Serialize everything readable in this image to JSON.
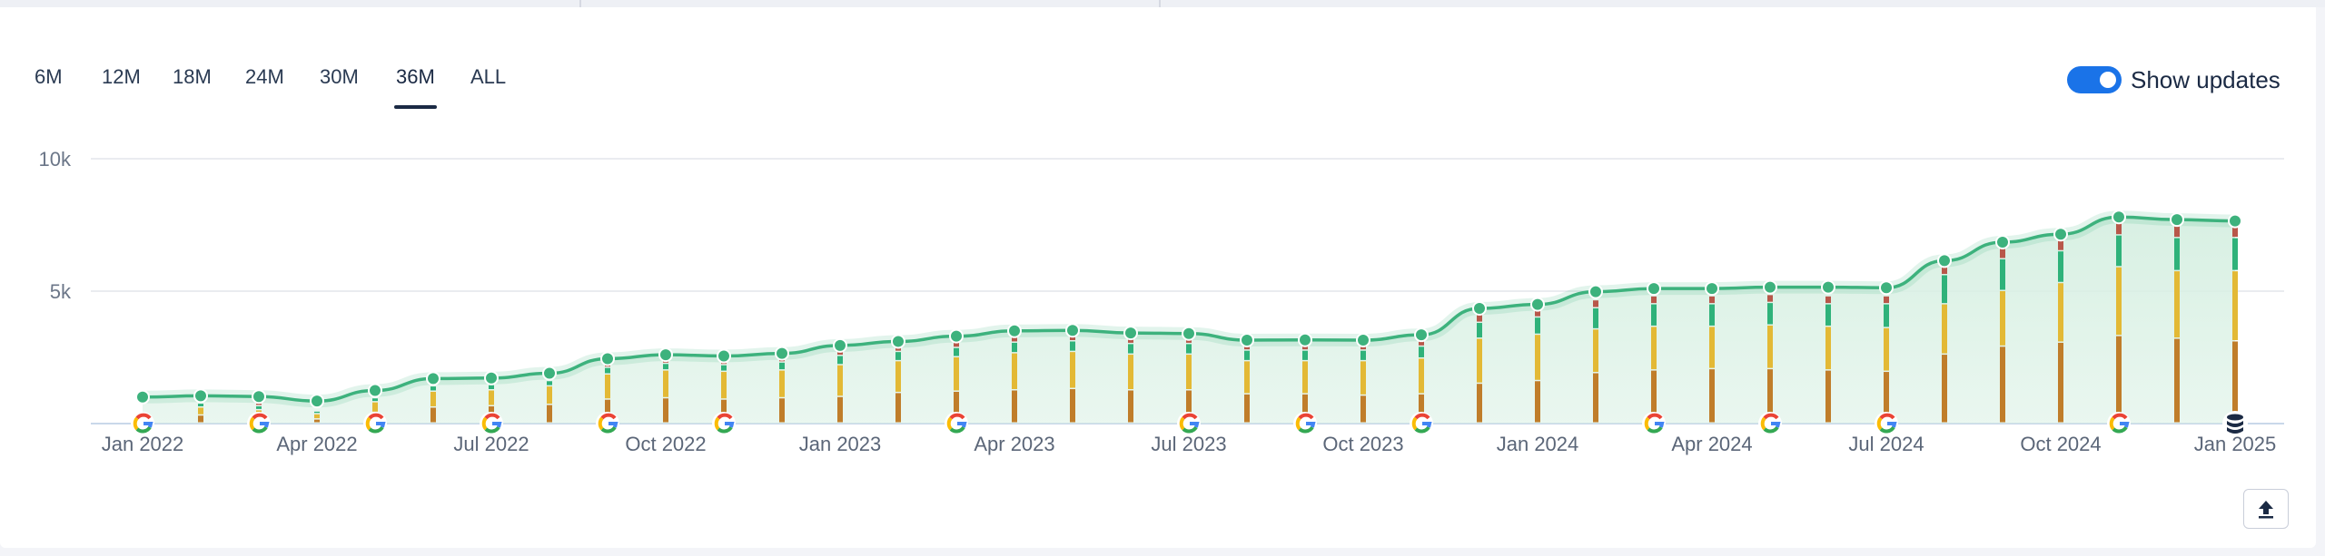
{
  "periods": {
    "items": [
      "6M",
      "12M",
      "18M",
      "24M",
      "30M",
      "36M",
      "ALL"
    ],
    "active": "36M"
  },
  "toggle": {
    "label": "Show updates",
    "on": true
  },
  "colors": {
    "line": "#3db27d",
    "area": "#d8f0e3",
    "seg_dark": "#c07d2a",
    "seg_yellow": "#e3b935",
    "seg_green": "#2fb27a",
    "seg_red": "#b8574a",
    "toggle": "#1a73e8"
  },
  "export_icon": "upload-icon",
  "chart_data": {
    "type": "line",
    "y_ticks": [
      "10k",
      "5k"
    ],
    "y_tick_values": [
      10000,
      5000
    ],
    "ylim": [
      0,
      10000
    ],
    "grid": true,
    "x_tick_labels": [
      "Jan 2022",
      "Apr 2022",
      "Jul 2022",
      "Oct 2022",
      "Jan 2023",
      "Apr 2023",
      "Jul 2023",
      "Oct 2023",
      "Jan 2024",
      "Apr 2024",
      "Jul 2024",
      "Oct 2024",
      "Jan 2025"
    ],
    "months": [
      "Jan 2022",
      "Feb 2022",
      "Mar 2022",
      "Apr 2022",
      "May 2022",
      "Jun 2022",
      "Jul 2022",
      "Aug 2022",
      "Sep 2022",
      "Oct 2022",
      "Nov 2022",
      "Dec 2022",
      "Jan 2023",
      "Feb 2023",
      "Mar 2023",
      "Apr 2023",
      "May 2023",
      "Jun 2023",
      "Jul 2023",
      "Aug 2023",
      "Sep 2023",
      "Oct 2023",
      "Nov 2023",
      "Dec 2023",
      "Jan 2024",
      "Feb 2024",
      "Mar 2024",
      "Apr 2024",
      "May 2024",
      "Jun 2024",
      "Jul 2024",
      "Aug 2024",
      "Sep 2024",
      "Oct 2024",
      "Nov 2024",
      "Dec 2024",
      "Jan 2025"
    ],
    "values": [
      1000,
      1050,
      1020,
      850,
      1250,
      1700,
      1720,
      1900,
      2450,
      2600,
      2550,
      2650,
      2950,
      3100,
      3300,
      3500,
      3520,
      3420,
      3400,
      3150,
      3160,
      3150,
      3350,
      4350,
      4500,
      4980,
      5100,
      5100,
      5150,
      5150,
      5130,
      6150,
      6850,
      7150,
      7800,
      7700,
      7650
    ],
    "stack_segments": {
      "dark": [
        120,
        300,
        250,
        150,
        400,
        600,
        650,
        700,
        900,
        950,
        900,
        950,
        1000,
        1150,
        1200,
        1250,
        1300,
        1250,
        1250,
        1100,
        1100,
        1050,
        1100,
        1500,
        1600,
        1900,
        2000,
        2050,
        2050,
        2000,
        1950,
        2600,
        2900,
        3050,
        3300,
        3200,
        3100
      ],
      "yellow": [
        150,
        300,
        250,
        200,
        400,
        600,
        600,
        700,
        950,
        1050,
        1050,
        1050,
        1200,
        1200,
        1300,
        1400,
        1400,
        1350,
        1350,
        1250,
        1250,
        1300,
        1350,
        1700,
        1750,
        1650,
        1650,
        1600,
        1650,
        1650,
        1650,
        1900,
        2100,
        2250,
        2600,
        2550,
        2650
      ],
      "green": [
        100,
        150,
        150,
        100,
        150,
        200,
        200,
        200,
        250,
        250,
        250,
        300,
        350,
        350,
        350,
        400,
        400,
        400,
        400,
        400,
        400,
        400,
        450,
        600,
        650,
        800,
        850,
        850,
        850,
        850,
        900,
        1100,
        1200,
        1200,
        1200,
        1250,
        1250
      ],
      "red": [
        50,
        100,
        100,
        50,
        100,
        100,
        100,
        100,
        150,
        150,
        150,
        150,
        200,
        200,
        200,
        200,
        200,
        200,
        200,
        200,
        200,
        200,
        200,
        300,
        300,
        300,
        300,
        300,
        300,
        300,
        300,
        350,
        400,
        400,
        450,
        450,
        450
      ]
    },
    "update_marker_months": [
      "Jan 2022",
      "Mar 2022",
      "May 2022",
      "Jul 2022",
      "Sep 2022",
      "Nov 2022",
      "Mar 2023",
      "Jul 2023",
      "Sep 2023",
      "Nov 2023",
      "Mar 2024",
      "May 2024",
      "Jul 2024",
      "Nov 2024"
    ],
    "database_marker_month": "Jan 2025"
  }
}
